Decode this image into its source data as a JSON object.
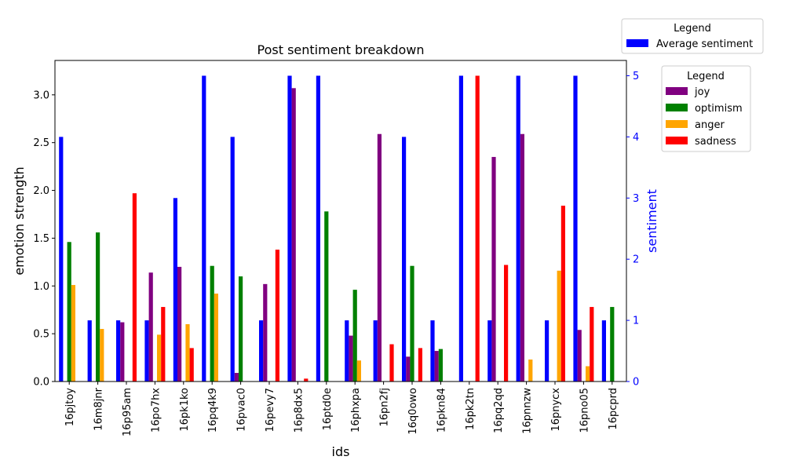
{
  "chart_data": {
    "type": "bar",
    "title": "Post sentiment breakdown",
    "xlabel": "ids",
    "ylabel": "emotion strength",
    "ylabel_right": "sentiment",
    "categories": [
      "16pjtoy",
      "16m8jnr",
      "16p95am",
      "16po7hx",
      "16pk1ko",
      "16pq4k9",
      "16pvac0",
      "16pevy7",
      "16p8dx5",
      "16ptd0e",
      "16phxpa",
      "16pn2fj",
      "16q0owo",
      "16pkn84",
      "16pk2tn",
      "16pq2qd",
      "16pnnzw",
      "16pnycx",
      "16pno05",
      "16pcprd"
    ],
    "ylim": [
      0,
      3.36
    ],
    "yticks": [
      0.0,
      0.5,
      1.0,
      1.5,
      2.0,
      2.5,
      3.0
    ],
    "ylim_right": [
      0,
      5.25
    ],
    "yticks_right": [
      0,
      1,
      2,
      3,
      4,
      5
    ],
    "sentiment_series": {
      "name": "Average sentiment",
      "color": "#0000ff",
      "values": [
        4,
        1,
        1,
        1,
        3,
        5,
        4,
        1,
        5,
        5,
        1,
        1,
        4,
        1,
        5,
        1,
        5,
        1,
        5,
        1
      ]
    },
    "series": [
      {
        "name": "joy",
        "color": "#800080",
        "values": [
          0,
          0,
          0.62,
          1.14,
          1.2,
          0,
          0.09,
          1.02,
          3.07,
          0,
          0.48,
          2.59,
          0.26,
          0.32,
          0,
          2.35,
          2.59,
          0,
          0.54,
          0
        ]
      },
      {
        "name": "optimism",
        "color": "#008000",
        "values": [
          1.46,
          1.56,
          0,
          0,
          0,
          1.21,
          1.1,
          0,
          0,
          1.78,
          0.96,
          0,
          1.21,
          0.34,
          0,
          0,
          0,
          0,
          0,
          0.78
        ]
      },
      {
        "name": "anger",
        "color": "#ffa500",
        "values": [
          1.01,
          0.55,
          0,
          0.49,
          0.6,
          0.92,
          0,
          0,
          0,
          0,
          0.22,
          0,
          0,
          0,
          0,
          0,
          0.23,
          1.16,
          0.16,
          0
        ]
      },
      {
        "name": "sadness",
        "color": "#ff0000",
        "values": [
          0,
          0,
          1.97,
          0.78,
          0.35,
          0,
          0,
          1.38,
          0.03,
          0,
          0,
          0.39,
          0.35,
          0,
          3.2,
          1.22,
          0,
          1.84,
          0.78,
          0
        ]
      }
    ],
    "legend_sentiment": {
      "title": "Legend",
      "placement": "top-right outside"
    },
    "legend_emotions": {
      "title": "Legend",
      "placement": "right outside"
    },
    "grid": false
  }
}
